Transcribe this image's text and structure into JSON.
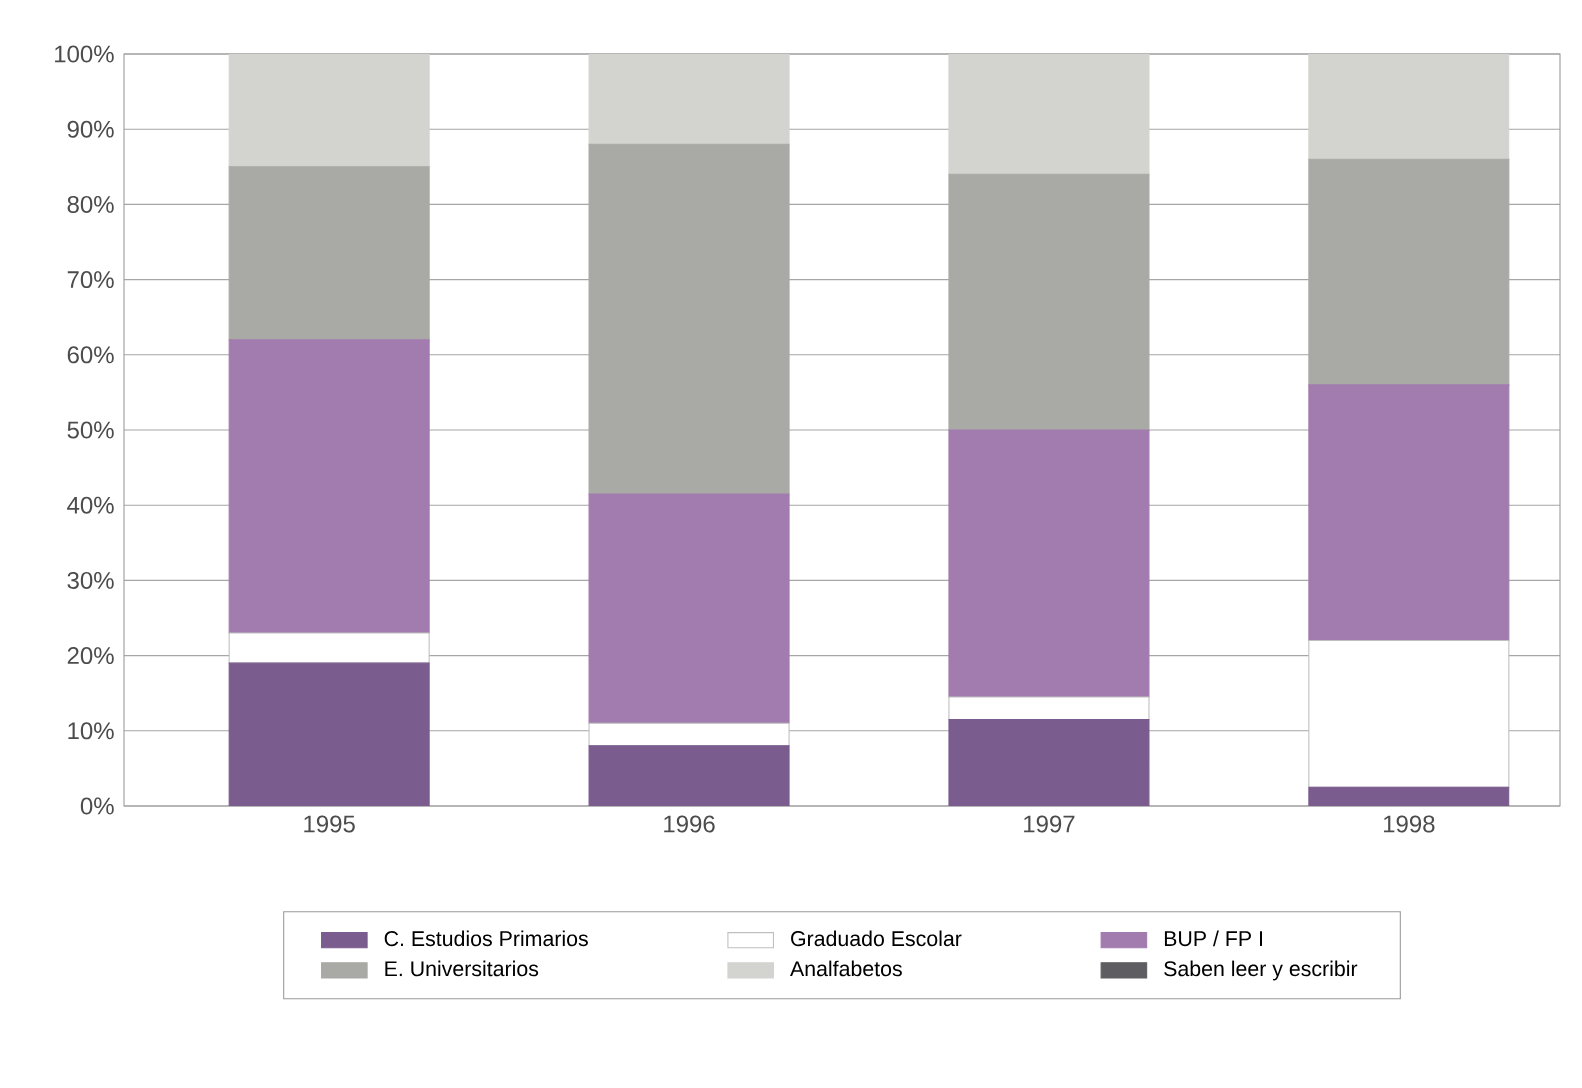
{
  "chart_data": {
    "type": "bar",
    "stacked": true,
    "categories": [
      "1995",
      "1996",
      "1997",
      "1998"
    ],
    "series": [
      {
        "name": "C. Estudios Primarios",
        "color": "#7b5c8e",
        "values": [
          19,
          8,
          11.5,
          2.5
        ]
      },
      {
        "name": "Graduado Escolar",
        "color": "#ffffff",
        "values": [
          4,
          3,
          3,
          19.5
        ]
      },
      {
        "name": "BUP / FP I",
        "color": "#a27cae",
        "values": [
          39,
          30.5,
          35.5,
          34
        ]
      },
      {
        "name": "E. Universitarios",
        "color": "#a9aaa5",
        "values": [
          23,
          46.5,
          34,
          30
        ]
      },
      {
        "name": "Analfabetos",
        "color": "#d3d4cf",
        "values": [
          15,
          12,
          16,
          14
        ]
      },
      {
        "name": "Saben leer y escribir",
        "color": "#5e5e62",
        "values": [
          null,
          null,
          null,
          null
        ]
      }
    ],
    "ylim": [
      0,
      100
    ],
    "yticks": [
      {
        "value": 0,
        "label": "0%"
      },
      {
        "value": 10,
        "label": "10%"
      },
      {
        "value": 20,
        "label": "20%"
      },
      {
        "value": 30,
        "label": "30%"
      },
      {
        "value": 40,
        "label": "40%"
      },
      {
        "value": 50,
        "label": "50%"
      },
      {
        "value": 60,
        "label": "60%"
      },
      {
        "value": 70,
        "label": "70%"
      },
      {
        "value": 80,
        "label": "80%"
      },
      {
        "value": 90,
        "label": "90%"
      },
      {
        "value": 100,
        "label": "100%"
      }
    ],
    "grid": "y",
    "legend": "bottom"
  }
}
